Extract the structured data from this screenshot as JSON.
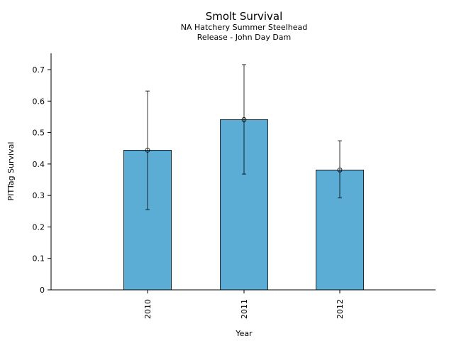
{
  "chart_data": {
    "type": "bar",
    "title": "Smolt Survival",
    "subtitle_lines": [
      "NA Hatchery Summer Steelhead",
      "Release - John Day Dam"
    ],
    "xlabel": "Year",
    "ylabel": "PITTag Survival",
    "categories": [
      "2010",
      "2011",
      "2012"
    ],
    "values": [
      0.444,
      0.541,
      0.381
    ],
    "error_low": [
      0.255,
      0.368,
      0.292
    ],
    "error_high": [
      0.632,
      0.716,
      0.474
    ],
    "ylim": [
      0,
      0.752
    ],
    "yticks": [
      0,
      0.1,
      0.2,
      0.3,
      0.4,
      0.5,
      0.6,
      0.7
    ],
    "ytick_labels": [
      "0",
      "0.1",
      "0.2",
      "0.3",
      "0.4",
      "0.5",
      "0.6",
      "0.7"
    ],
    "grid": false,
    "bar_color": "#5badd6"
  }
}
